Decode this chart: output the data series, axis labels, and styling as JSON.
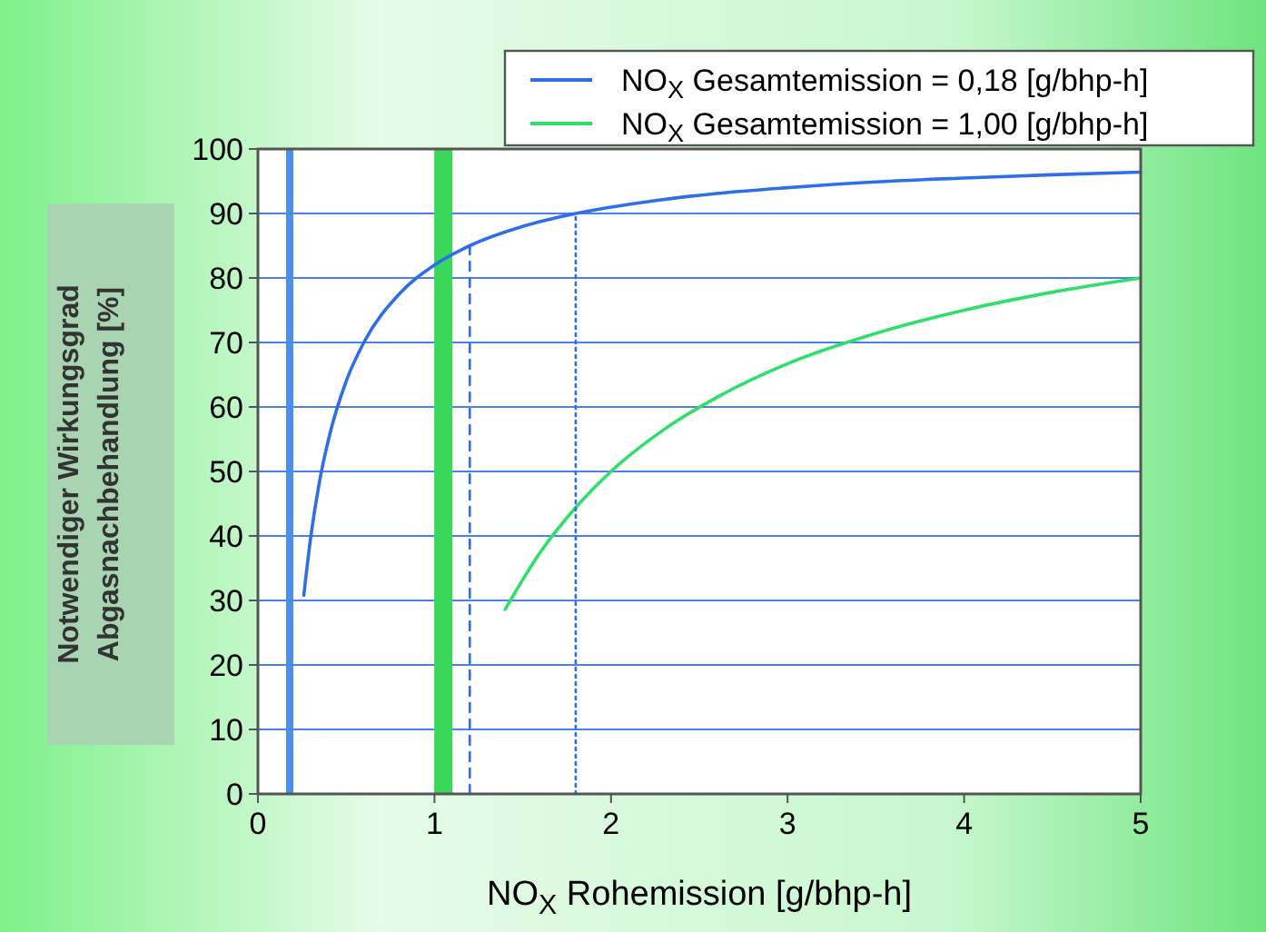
{
  "chart_data": {
    "type": "line",
    "xlabel": "NO$_{X}$ Rohemission  [g/bhp-h]",
    "ylabel": "Notwendiger Wirkungsgrad\nAbgasnachbehandlung [%]",
    "xlim": [
      0,
      5
    ],
    "xticks": [
      0,
      1,
      2,
      3,
      4,
      5
    ],
    "ylim": [
      0,
      100
    ],
    "yticks": [
      0,
      10,
      20,
      30,
      40,
      50,
      60,
      70,
      80,
      90,
      100
    ],
    "grid": "y",
    "legend": "top right",
    "series": [
      {
        "name": "NO$_{X}$ Gesamtemission = 0,18 [g/bhp-h]",
        "color": "#2f6ee8",
        "x": [
          0.26,
          0.3,
          0.35,
          0.4,
          0.5,
          0.6,
          0.8,
          1.0,
          1.2,
          1.5,
          1.8,
          2.2,
          2.6,
          3,
          3.5,
          4,
          4.5,
          5
        ],
        "values": [
          30.8,
          40,
          48.6,
          55,
          64,
          70,
          77.5,
          82,
          85,
          88,
          90,
          91.8,
          93.1,
          94,
          94.9,
          95.5,
          96,
          96.4
        ]
      },
      {
        "name": "NO$_{X}$ Gesamtemission = 1,00 [g/bhp-h]",
        "color": "#2ee06a",
        "x": [
          1.4,
          1.6,
          1.8,
          2.0,
          2.3,
          2.6,
          3,
          3.5,
          4,
          4.5,
          5
        ],
        "values": [
          28.6,
          37.5,
          44.4,
          50,
          56.5,
          61.5,
          66.7,
          71.4,
          75,
          77.8,
          80
        ]
      },
      {
        "color": "#2f6ee8",
        "line_style": "dashed",
        "x": [
          1.2,
          1.2
        ],
        "values": [
          0,
          85
        ]
      },
      {
        "color": "#2f6ee8",
        "line_style": "dotted",
        "x": [
          1.8,
          1.8
        ],
        "values": [
          0,
          90
        ]
      }
    ],
    "ref_lines": [
      {
        "axis": "x",
        "value": 0.18,
        "color": "#4a8ef0"
      },
      {
        "axis": "x",
        "value": 1.05,
        "color": "#3ad85a"
      }
    ]
  }
}
